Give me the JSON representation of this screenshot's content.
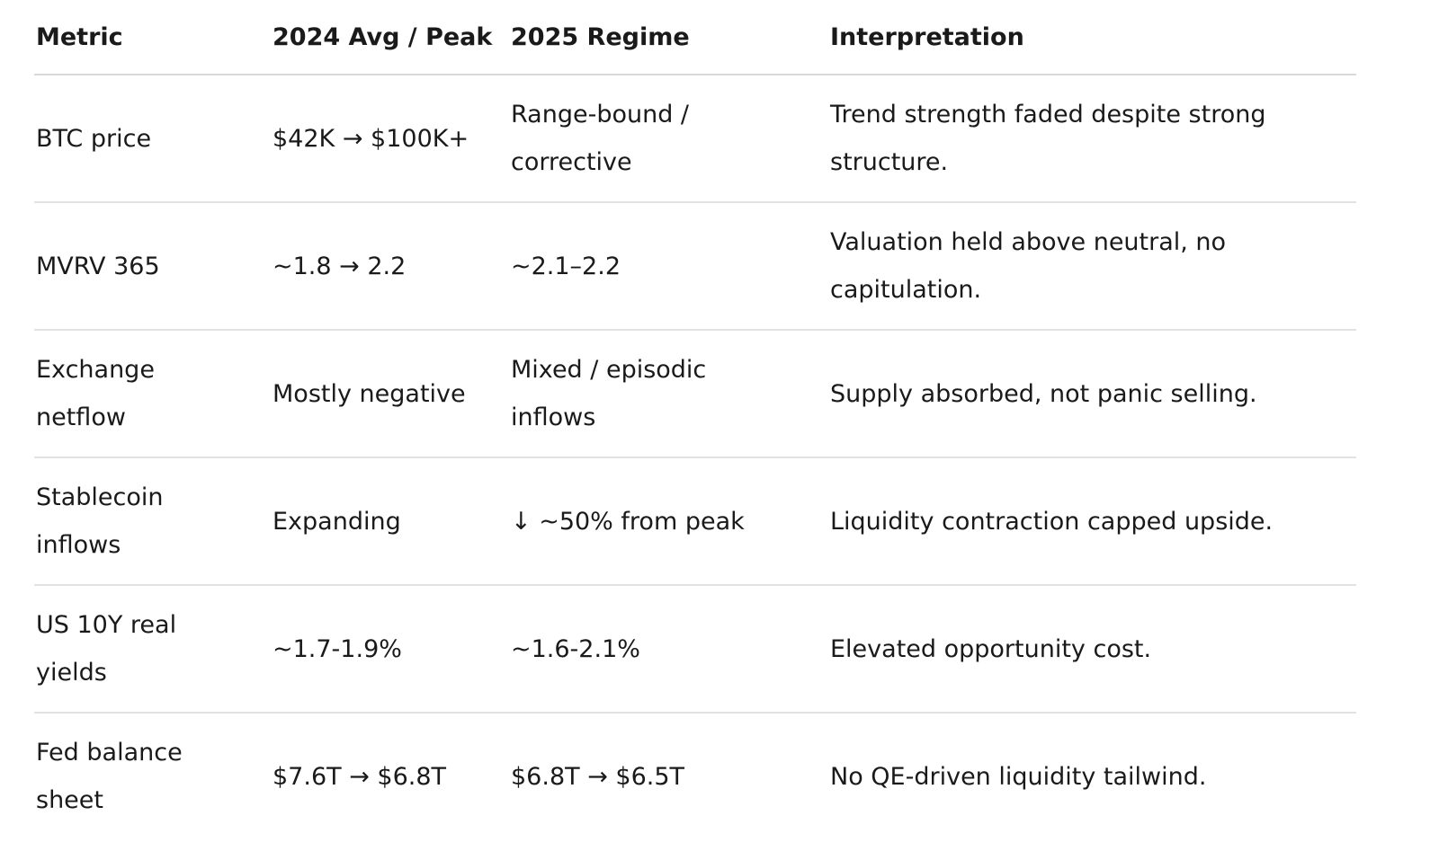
{
  "table": {
    "header": [
      "Metric",
      "2024 Avg / Peak",
      "2025 Regime",
      "Interpretation"
    ],
    "rows": [
      [
        "BTC price",
        "$42K → $100K+",
        "Range-bound / corrective",
        "Trend strength faded despite strong structure."
      ],
      [
        "MVRV 365",
        "~1.8 → 2.2",
        "~2.1–2.2",
        "Valuation held above neutral, no capitulation."
      ],
      [
        "Exchange netflow",
        "Mostly negative",
        "Mixed / episodic inflows",
        "Supply absorbed, not panic selling."
      ],
      [
        "Stablecoin inflows",
        "Expanding",
        "↓ ~50% from peak",
        "Liquidity contraction capped upside."
      ],
      [
        "US 10Y real yields",
        "~1.7-1.9%",
        "~1.6-2.1%",
        "Elevated opportunity cost."
      ],
      [
        "Fed balance sheet",
        "$7.6T → $6.8T",
        "$6.8T → $6.5T",
        "No QE-driven liquidity tailwind."
      ]
    ]
  }
}
